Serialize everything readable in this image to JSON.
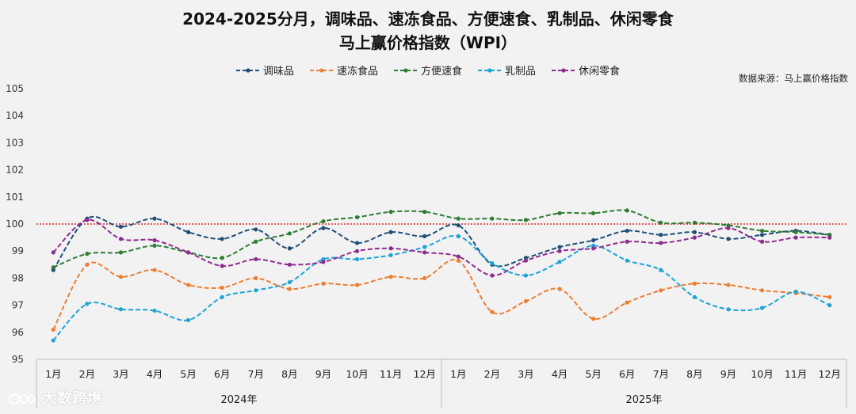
{
  "chart_data": {
    "type": "line",
    "title": "2024-2025分月，调味品、速冻食品、方便速食、乳制品、休闲零食",
    "subtitle": "马上赢价格指数（WPI）",
    "source": "数据来源：马上赢价格指数",
    "ylim": [
      95,
      105
    ],
    "yticks": [
      95,
      96,
      97,
      98,
      99,
      100,
      101,
      102,
      103,
      104,
      105
    ],
    "reference_line": 100,
    "categories": [
      "1月",
      "2月",
      "3月",
      "4月",
      "5月",
      "6月",
      "7月",
      "8月",
      "9月",
      "10月",
      "11月",
      "12月",
      "1月",
      "2月",
      "3月",
      "4月",
      "5月",
      "6月",
      "7月",
      "8月",
      "9月",
      "10月",
      "11月",
      "12月"
    ],
    "groups": [
      {
        "label": "2024年",
        "count": 12
      },
      {
        "label": "2025年",
        "count": 12
      }
    ],
    "series": [
      {
        "name": "调味品",
        "color": "#1f4e79",
        "values": [
          98.3,
          100.2,
          99.9,
          100.2,
          99.7,
          99.45,
          99.8,
          99.1,
          99.85,
          99.3,
          99.7,
          99.55,
          99.95,
          98.5,
          98.75,
          99.15,
          99.4,
          99.75,
          99.6,
          99.7,
          99.45,
          99.6,
          99.75,
          99.6
        ]
      },
      {
        "name": "速冻食品",
        "color": "#ed7d31",
        "values": [
          96.1,
          98.5,
          98.05,
          98.3,
          97.75,
          97.65,
          98.0,
          97.6,
          97.8,
          97.75,
          98.05,
          98.0,
          98.65,
          96.75,
          97.15,
          97.6,
          96.5,
          97.1,
          97.55,
          97.8,
          97.75,
          97.55,
          97.45,
          97.3
        ]
      },
      {
        "name": "方便速食",
        "color": "#2e7d32",
        "values": [
          98.4,
          98.9,
          98.95,
          99.2,
          98.95,
          98.75,
          99.35,
          99.65,
          100.1,
          100.25,
          100.45,
          100.45,
          100.2,
          100.2,
          100.15,
          100.4,
          100.4,
          100.5,
          100.05,
          100.05,
          99.95,
          99.75,
          99.7,
          99.6
        ]
      },
      {
        "name": "乳制品",
        "color": "#1ea3d6",
        "values": [
          95.7,
          97.05,
          96.85,
          96.8,
          96.45,
          97.3,
          97.55,
          97.85,
          98.7,
          98.7,
          98.85,
          99.15,
          99.55,
          98.55,
          98.1,
          98.6,
          99.2,
          98.65,
          98.3,
          97.3,
          96.85,
          96.9,
          97.5,
          97.0
        ]
      },
      {
        "name": "休闲零食",
        "color": "#8e2b8e",
        "values": [
          98.95,
          100.15,
          99.45,
          99.4,
          98.95,
          98.45,
          98.7,
          98.5,
          98.6,
          99.0,
          99.1,
          98.95,
          98.8,
          98.1,
          98.65,
          99.0,
          99.1,
          99.35,
          99.3,
          99.5,
          99.85,
          99.35,
          99.5,
          99.5
        ]
      }
    ]
  },
  "watermark": {
    "text": "大数跨境"
  }
}
